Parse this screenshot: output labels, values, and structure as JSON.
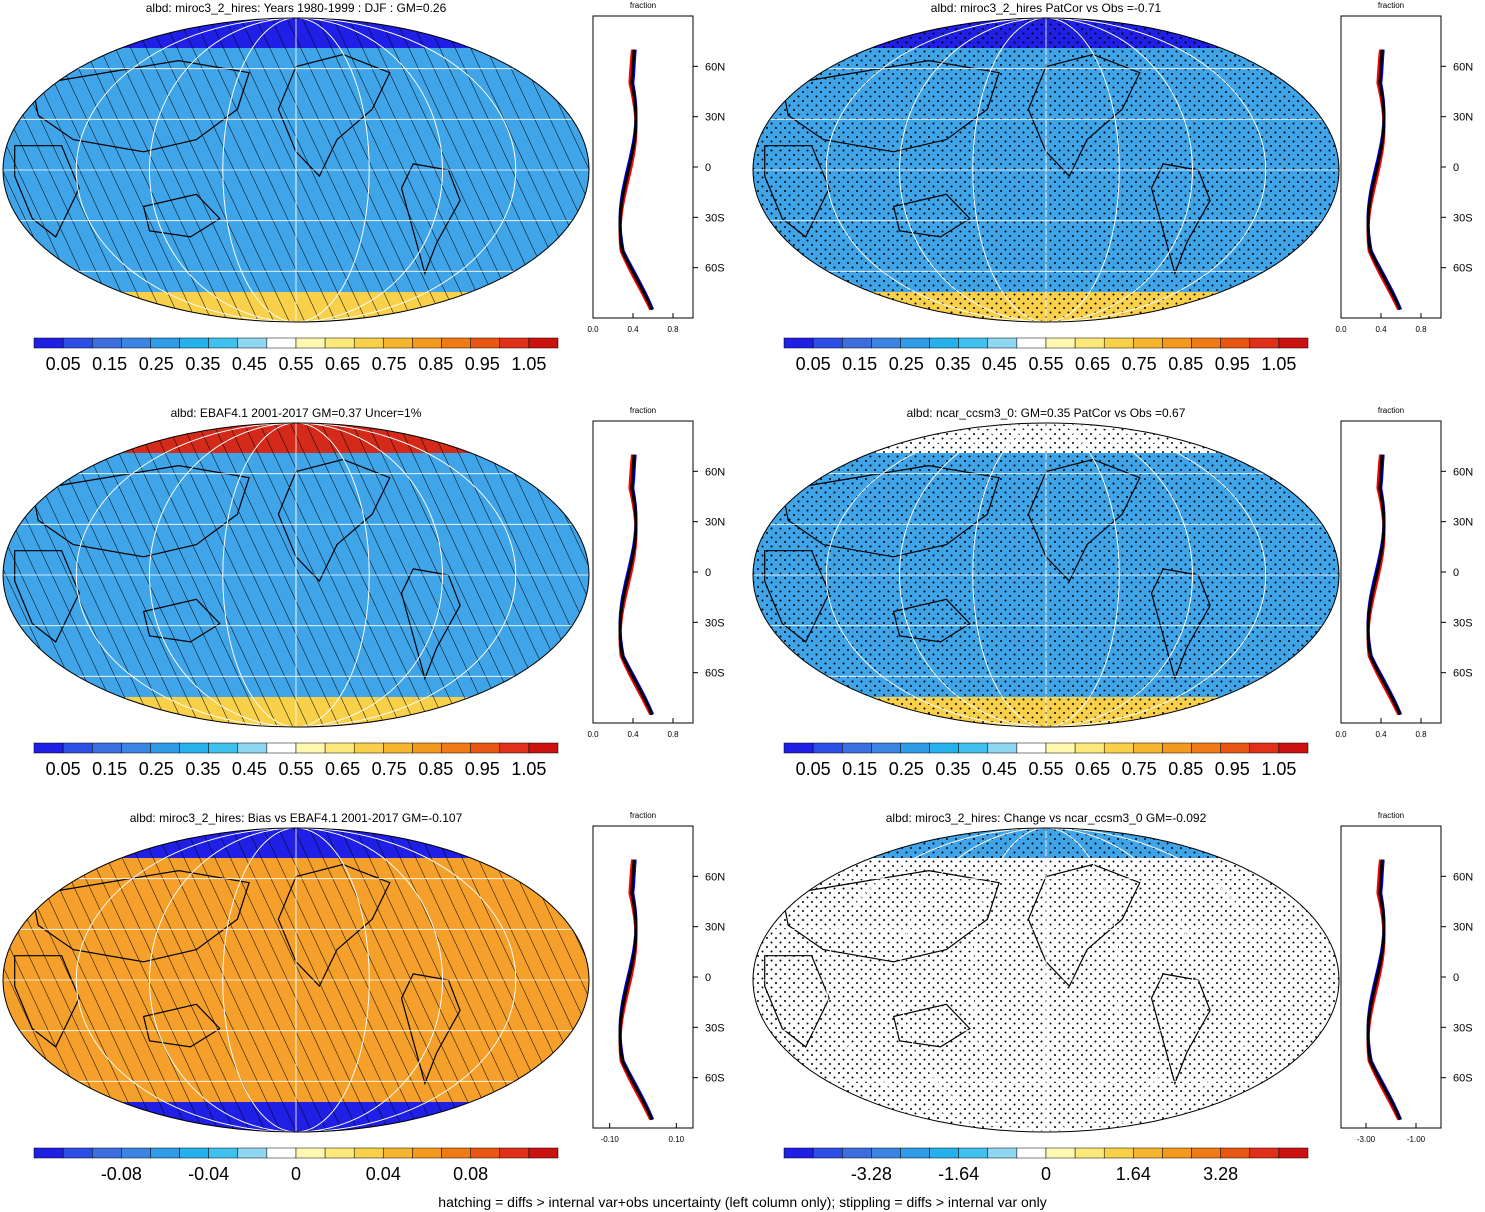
{
  "footer_note": "hatching = diffs > internal var+obs uncertainty (left column only); stippling = diffs > internal var only",
  "colors": {
    "seq": [
      "#1f1fe6",
      "#2d4ee6",
      "#3b6fe0",
      "#3a84e3",
      "#2e9ce6",
      "#24b1ec",
      "#3fc1f0",
      "#8fd6f1",
      "#ffffff",
      "#fff8b0",
      "#fde87a",
      "#f8d04a",
      "#f5b52d",
      "#f39a1e",
      "#ef7a16",
      "#e95614",
      "#e0301a",
      "#cc1111"
    ],
    "continent": "#000000",
    "grid": "#ffffff",
    "model_line": "#0000ff",
    "obs_line": "#ff0000",
    "ens_line": "#000000"
  },
  "profile": {
    "label": "fraction",
    "lat_labels": [
      "60N",
      "30N",
      "0",
      "30S",
      "60S"
    ]
  },
  "chart_data": [
    {
      "type": "heatmap",
      "panel": "a",
      "title": "albd: miroc3_2_hires: Years 1980-1999 : DJF : GM=0.26",
      "colorbar_labels": [
        "0.05",
        "0.15",
        "0.25",
        "0.35",
        "0.45",
        "0.55",
        "0.65",
        "0.75",
        "0.85",
        "0.95",
        "1.05"
      ],
      "profile_x_labels": [
        "0.0",
        "0.4",
        "0.8"
      ],
      "profile_xlim": [
        0,
        1
      ],
      "fill": "#3fa4e8",
      "north": "#1f1fe6",
      "south": "#f8d04a",
      "marks": "hatch"
    },
    {
      "type": "heatmap",
      "panel": "b",
      "title": "albd: miroc3_2_hires PatCor vs Obs =-0.71",
      "colorbar_labels": [
        "0.05",
        "0.15",
        "0.25",
        "0.35",
        "0.45",
        "0.55",
        "0.65",
        "0.75",
        "0.85",
        "0.95",
        "1.05"
      ],
      "profile_x_labels": [
        "0.0",
        "0.4",
        "0.8"
      ],
      "profile_xlim": [
        0,
        1
      ],
      "fill": "#3fa4e8",
      "north": "#1f1fe6",
      "south": "#f8d04a",
      "marks": "stipple"
    },
    {
      "type": "heatmap",
      "panel": "c",
      "title": "albd: EBAF4.1 2001-2017 GM=0.37 Uncer=1%",
      "colorbar_labels": [
        "0.05",
        "0.15",
        "0.25",
        "0.35",
        "0.45",
        "0.55",
        "0.65",
        "0.75",
        "0.85",
        "0.95",
        "1.05"
      ],
      "profile_x_labels": [
        "0.0",
        "0.4",
        "0.8"
      ],
      "profile_xlim": [
        0,
        1
      ],
      "fill": "#3fa4e8",
      "north": "#d42a1a",
      "south": "#f8d04a",
      "marks": "hatch"
    },
    {
      "type": "heatmap",
      "panel": "d",
      "title": "albd: ncar_ccsm3_0: GM=0.35 PatCor vs Obs =0.67",
      "colorbar_labels": [
        "0.05",
        "0.15",
        "0.25",
        "0.35",
        "0.45",
        "0.55",
        "0.65",
        "0.75",
        "0.85",
        "0.95",
        "1.05"
      ],
      "profile_x_labels": [
        "0.0",
        "0.4",
        "0.8"
      ],
      "profile_xlim": [
        0,
        1
      ],
      "fill": "#3fa4e8",
      "north": "#ffffff",
      "south": "#f8d04a",
      "marks": "stipple"
    },
    {
      "type": "heatmap",
      "panel": "e",
      "title": "albd: miroc3_2_hires: Bias vs EBAF4.1 2001-2017 GM=-0.107",
      "colorbar_labels": [
        "-0.08",
        "-0.04",
        "0",
        "0.04",
        "0.08"
      ],
      "profile_x_labels": [
        "-0.10",
        "0.10"
      ],
      "profile_xlim": [
        -0.15,
        0.15
      ],
      "fill": "#f5a02a",
      "north": "#1f1fe6",
      "south": "#1f1fe6",
      "marks": "hatch"
    },
    {
      "type": "heatmap",
      "panel": "f",
      "title": "albd: miroc3_2_hires: Change vs ncar_ccsm3_0 GM=-0.092",
      "colorbar_labels": [
        "-3.28",
        "-1.64",
        "0",
        "1.64",
        "3.28"
      ],
      "profile_x_labels": [
        "-3.00",
        "-1.00"
      ],
      "profile_xlim": [
        -4,
        0
      ],
      "fill": "#ffffff",
      "north": "#3fa4e8",
      "south": "#ffffff",
      "marks": "stipple"
    }
  ]
}
